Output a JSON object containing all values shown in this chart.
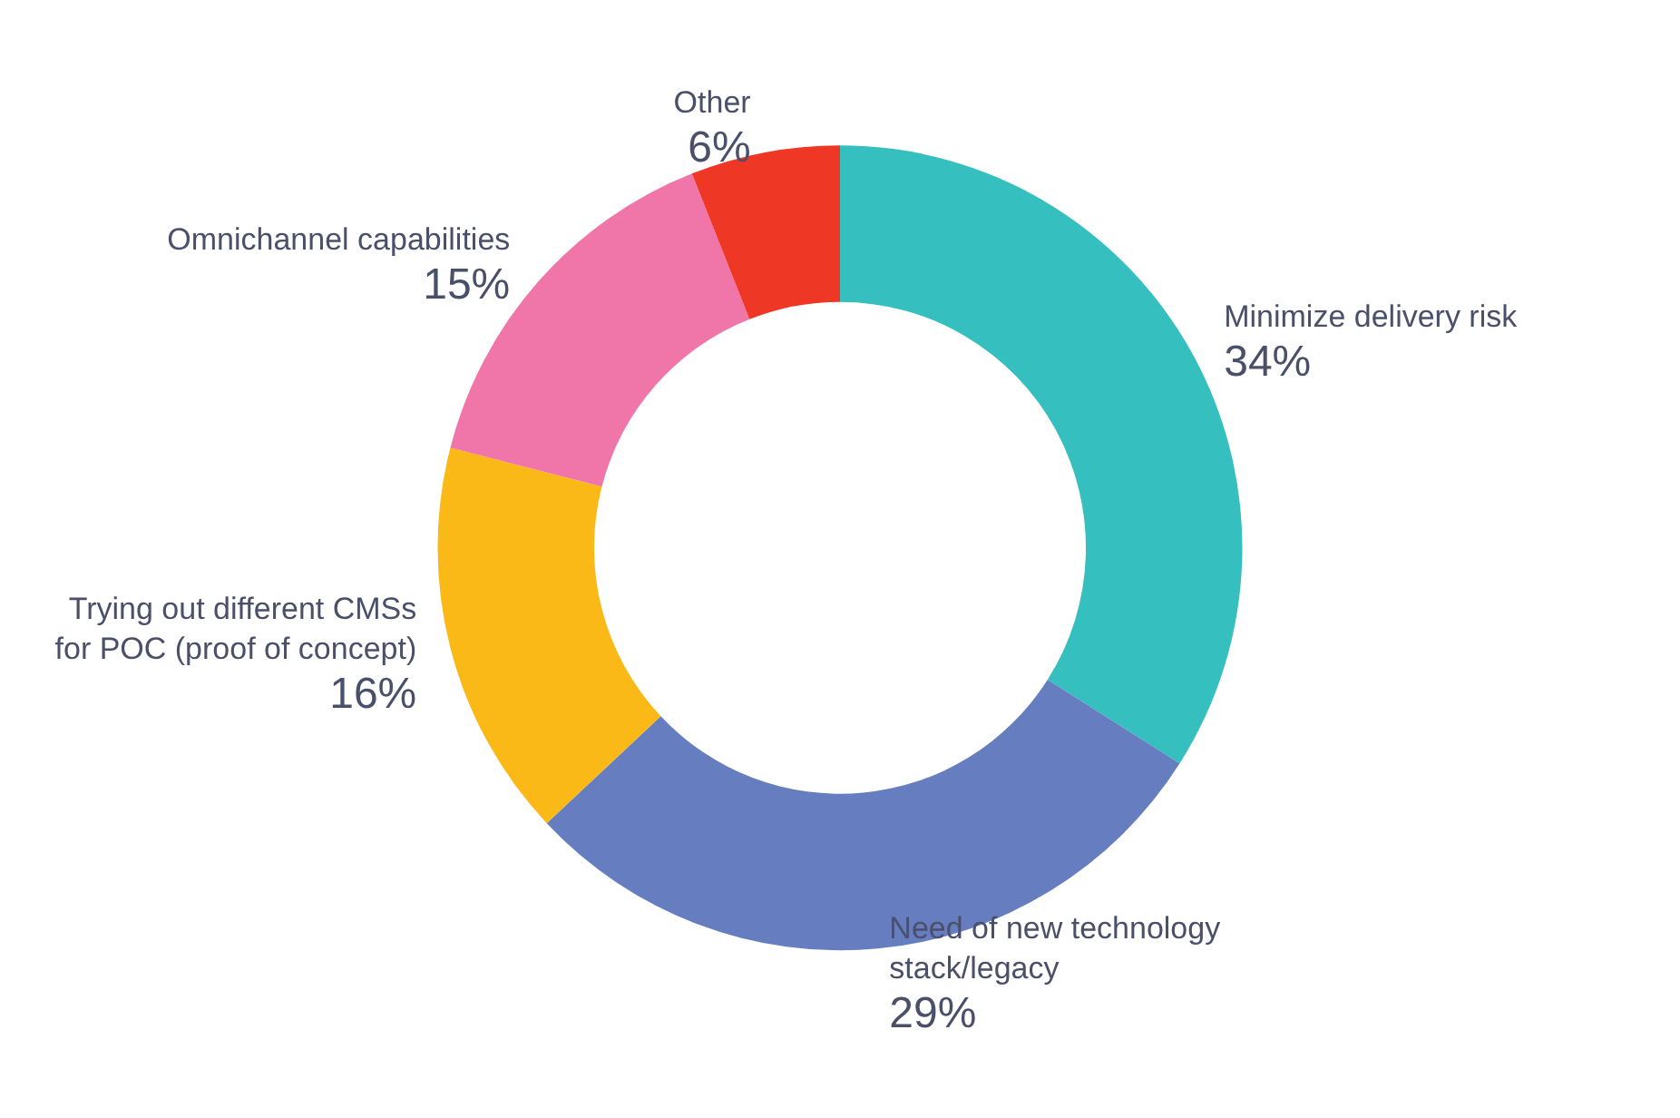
{
  "chart_data": {
    "type": "donut",
    "categories": [
      "Minimize delivery risk",
      "Need of new technology stack/legacy",
      "Trying out different CMSs for POC (proof of concept)",
      "Omnichannel capabilities",
      "Other"
    ],
    "values": [
      34,
      29,
      16,
      15,
      6
    ],
    "value_labels": [
      "34%",
      "29%",
      "16%",
      "15%",
      "6%"
    ],
    "colors": [
      "#35bfbe",
      "#667ec0",
      "#fbb918",
      "#f075a8",
      "#ef3726"
    ],
    "legend": false
  }
}
